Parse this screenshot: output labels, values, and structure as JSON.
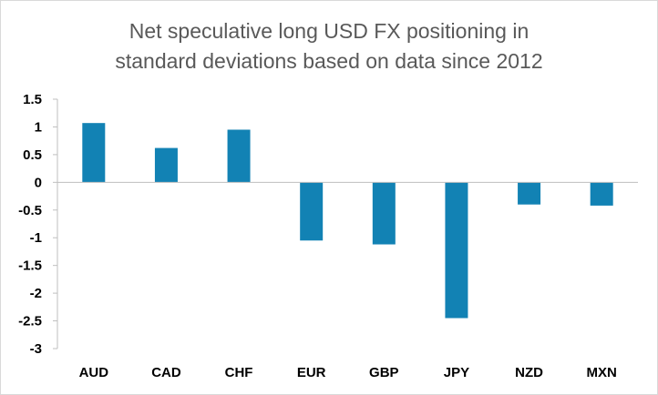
{
  "chart_data": {
    "type": "bar",
    "title": "Net speculative long USD FX positioning in standard deviations based on data since 2012",
    "title_lines": [
      "Net speculative long USD FX positioning in",
      "standard deviations based on data since 2012"
    ],
    "categories": [
      "AUD",
      "CAD",
      "CHF",
      "EUR",
      "GBP",
      "JPY",
      "NZD",
      "MXN"
    ],
    "values": [
      1.07,
      0.62,
      0.95,
      -1.05,
      -1.12,
      -2.45,
      -0.4,
      -0.42
    ],
    "ylim": [
      -3,
      1.5
    ],
    "yticks": [
      1.5,
      1,
      0.5,
      0,
      -0.5,
      -1,
      -1.5,
      -2,
      -2.5,
      -3
    ],
    "ytick_labels": [
      "1.5",
      "1",
      "0.5",
      "0",
      "-0.5",
      "-1",
      "-1.5",
      "-2",
      "-2.5",
      "-3"
    ],
    "xlabel": "",
    "ylabel": "",
    "grid": false,
    "legend": "none",
    "bar_color": "#1282b4",
    "axis_color": "#bfbfbf"
  }
}
